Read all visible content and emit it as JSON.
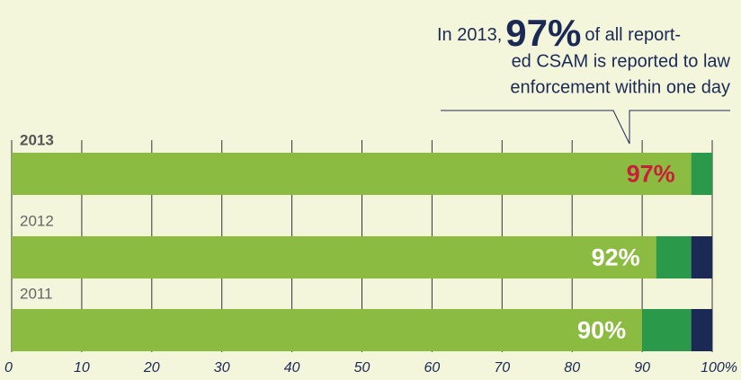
{
  "chart_data": {
    "type": "stacked-bar-horizontal",
    "categories": [
      "2013",
      "2012",
      "2011"
    ],
    "series": [
      {
        "color": "#8bbb40",
        "values": [
          97,
          92,
          90
        ],
        "value_labels": [
          "97%",
          "92%",
          "90%"
        ],
        "label_colors": [
          "#c8203a",
          "#ffffff",
          "#ffffff"
        ]
      },
      {
        "color": "#2a9a4a",
        "values": [
          3,
          5,
          7
        ]
      },
      {
        "color": "#1b2a55",
        "values": [
          0,
          3,
          3
        ]
      }
    ],
    "xlim": [
      0,
      100
    ],
    "xticks": [
      0,
      10,
      20,
      30,
      40,
      50,
      60,
      70,
      80,
      90,
      {
        "value": 100,
        "label": "100%"
      }
    ],
    "grid": true,
    "annotation": {
      "lead": "In 2013,",
      "highlight": "97%",
      "lines": [
        "of all report-",
        "ed CSAM is reported to law",
        "enforcement within one day"
      ]
    }
  }
}
